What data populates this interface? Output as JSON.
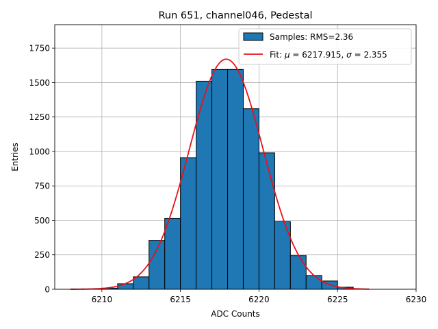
{
  "chart_data": {
    "type": "bar",
    "title": "Run 651, channel046, Pedestal",
    "xlabel": "ADC Counts",
    "ylabel": "Entries",
    "xlim": [
      6207,
      6230
    ],
    "ylim": [
      0,
      1920
    ],
    "xticks": [
      6210,
      6215,
      6220,
      6225,
      6230
    ],
    "yticks": [
      0,
      250,
      500,
      750,
      1000,
      1250,
      1500,
      1750
    ],
    "grid": true,
    "legend_position": "top-right",
    "series": [
      {
        "name": "Samples: RMS=2.36",
        "kind": "histogram",
        "color": "#1f77b4",
        "edgecolor": "#000000",
        "bin_width": 1,
        "bin_left_edges": [
          6209,
          6210,
          6211,
          6212,
          6213,
          6214,
          6215,
          6216,
          6217,
          6218,
          6219,
          6220,
          6221,
          6222,
          6223,
          6224,
          6225
        ],
        "values": [
          2,
          8,
          40,
          90,
          355,
          515,
          955,
          1510,
          1595,
          1595,
          1310,
          990,
          490,
          245,
          100,
          60,
          15
        ]
      },
      {
        "name_prefix": "Fit: ",
        "name_mu": "μ",
        "name_mid": " = 6217.915, ",
        "name_sigma": "σ",
        "name_suffix": " = 2.355",
        "kind": "gaussian",
        "color": "#e8111a",
        "mu": 6217.915,
        "sigma": 2.355,
        "amplitude": 1670,
        "x_range": [
          6208,
          6227
        ]
      }
    ]
  }
}
